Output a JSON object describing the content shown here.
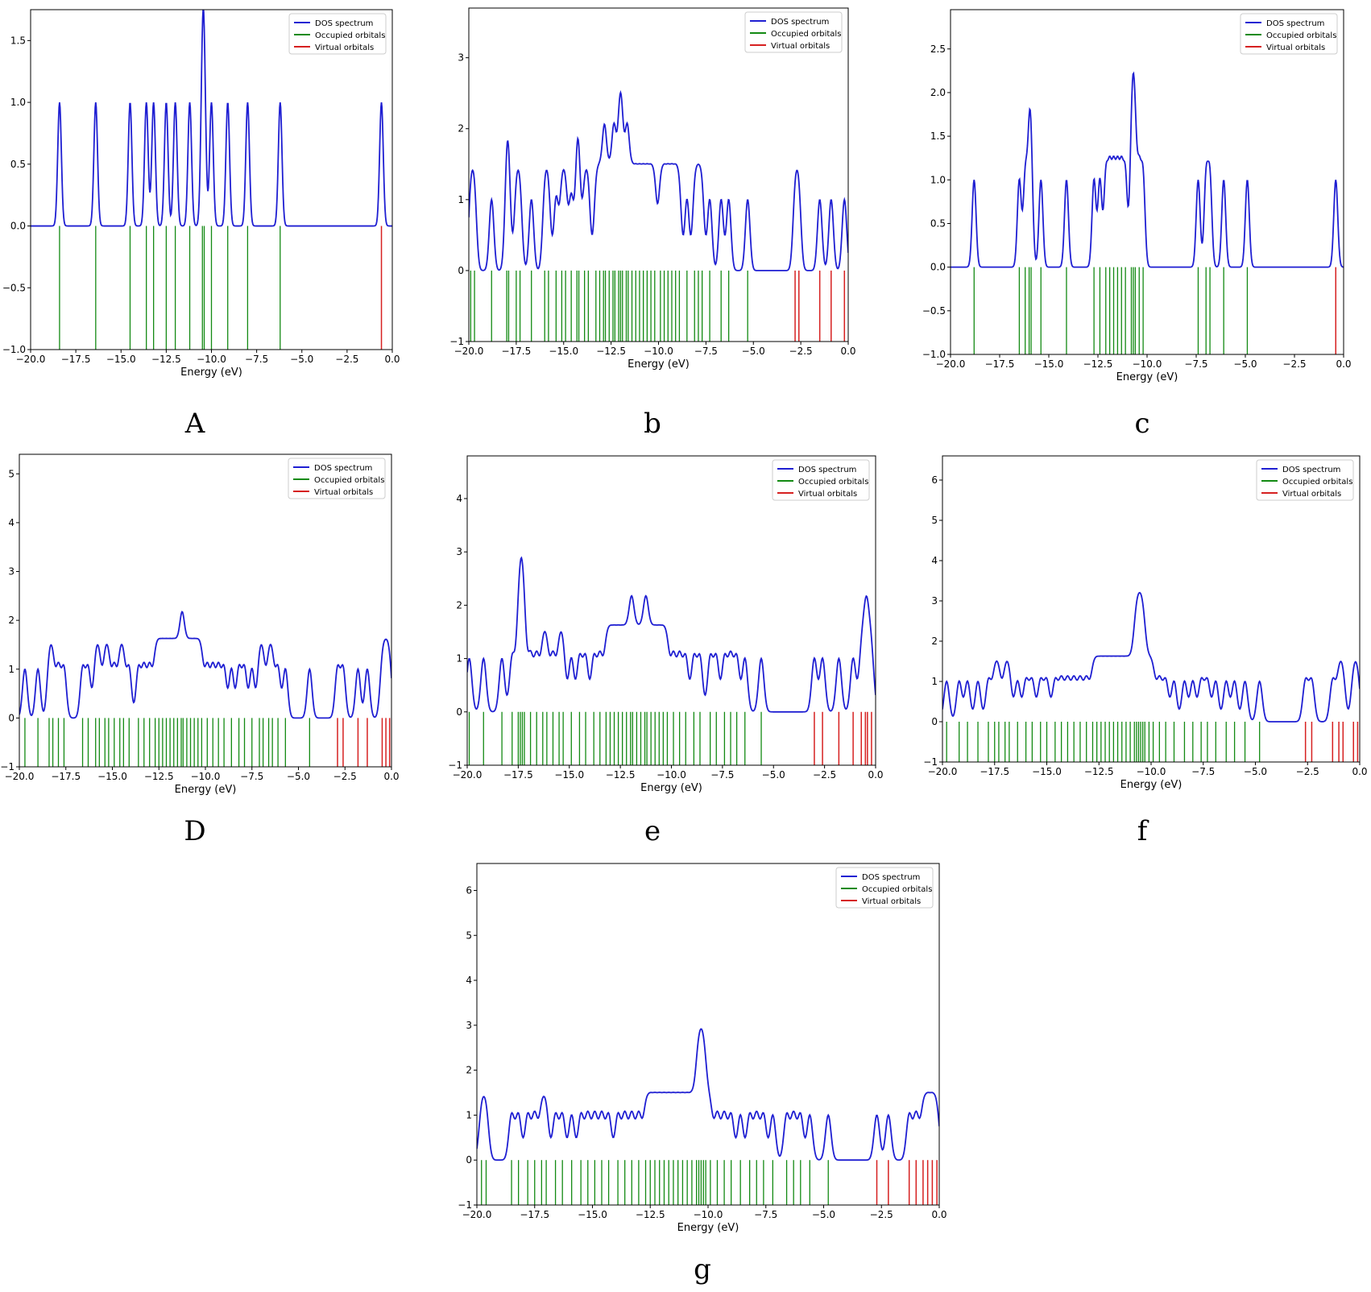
{
  "figure": {
    "legend_labels": [
      "DOS spectrum",
      "Occupied orbitals",
      "Virtual orbitals"
    ],
    "colors": {
      "dos": "#1f1fd2",
      "occupied": "#138a13",
      "virtual": "#d62020",
      "axis": "#000000"
    }
  },
  "chart_data": [
    {
      "panel": "A",
      "type": "line",
      "xlabel": "Energy (eV)",
      "ylabel": "",
      "xlim": [
        -20.0,
        0.0
      ],
      "ylim": [
        -1.0,
        1.75
      ],
      "xticks": [
        "−20.0",
        "−17.5",
        "−15.0",
        "−12.5",
        "−10.0",
        "−7.5",
        "−5.0",
        "−2.5",
        "0.0"
      ],
      "yticks": [
        "−1.0",
        "−0.5",
        "0.0",
        "0.5",
        "1.0",
        "1.5"
      ],
      "ytick_values": [
        -1.0,
        -0.5,
        0.0,
        0.5,
        1.0,
        1.5
      ],
      "sigma": 0.1,
      "occupied": [
        -18.4,
        -16.4,
        -14.5,
        -13.6,
        -13.2,
        -12.5,
        -12.0,
        -11.2,
        -10.5,
        -10.4,
        -10.0,
        -9.1,
        -8.0,
        -6.2
      ],
      "virtual": [
        -0.6
      ]
    },
    {
      "panel": "b",
      "type": "line",
      "xlabel": "Energy (eV)",
      "ylabel": "",
      "xlim": [
        -20.0,
        0.0
      ],
      "ylim": [
        -1.0,
        3.7
      ],
      "xticks": [
        "−20.0",
        "−17.5",
        "−15.0",
        "−12.5",
        "−10.0",
        "−7.5",
        "−5.0",
        "−2.5",
        "0.0"
      ],
      "yticks": [
        "−1",
        "0",
        "1",
        "2",
        "3"
      ],
      "ytick_values": [
        -1,
        0,
        1,
        2,
        3
      ],
      "sigma": 0.12,
      "occupied": [
        -19.9,
        -19.7,
        -18.8,
        -18.0,
        -17.9,
        -17.5,
        -17.3,
        -16.7,
        -16.0,
        -15.8,
        -15.4,
        -15.1,
        -14.9,
        -14.6,
        -14.3,
        -14.2,
        -13.9,
        -13.7,
        -13.3,
        -13.1,
        -12.9,
        -12.8,
        -12.6,
        -12.4,
        -12.3,
        -12.1,
        -12.0,
        -11.9,
        -11.7,
        -11.6,
        -11.4,
        -11.2,
        -11.0,
        -10.8,
        -10.6,
        -10.4,
        -10.2,
        -9.9,
        -9.7,
        -9.5,
        -9.3,
        -9.1,
        -8.9,
        -8.5,
        -8.1,
        -7.9,
        -7.7,
        -7.3,
        -6.7,
        -6.3,
        -5.3
      ],
      "virtual": [
        -2.8,
        -2.6,
        -1.5,
        -0.9,
        -0.2
      ]
    },
    {
      "panel": "c",
      "type": "line",
      "xlabel": "Energy (eV)",
      "ylabel": "",
      "xlim": [
        -20.0,
        0.0
      ],
      "ylim": [
        -1.0,
        2.95
      ],
      "xticks": [
        "−20.0",
        "−17.5",
        "−15.0",
        "−12.5",
        "−10.0",
        "−7.5",
        "−5.0",
        "−2.5",
        "0.0"
      ],
      "yticks": [
        "−1.0",
        "−0.5",
        "0.0",
        "0.5",
        "1.0",
        "1.5",
        "2.0",
        "2.5"
      ],
      "ytick_values": [
        -1.0,
        -0.5,
        0.0,
        0.5,
        1.0,
        1.5,
        2.0,
        2.5
      ],
      "sigma": 0.1,
      "occupied": [
        -18.8,
        -16.5,
        -16.2,
        -16.0,
        -15.9,
        -15.4,
        -14.1,
        -12.7,
        -12.4,
        -12.1,
        -11.9,
        -11.7,
        -11.5,
        -11.3,
        -11.1,
        -10.8,
        -10.7,
        -10.6,
        -10.4,
        -10.2,
        -7.4,
        -7.0,
        -6.8,
        -6.1,
        -4.9
      ],
      "virtual": [
        -0.4
      ]
    },
    {
      "panel": "D",
      "type": "line",
      "xlabel": "Energy (eV)",
      "ylabel": "",
      "xlim": [
        -20.0,
        0.0
      ],
      "ylim": [
        -1.0,
        5.4
      ],
      "xticks": [
        "−20.0",
        "−17.5",
        "−15.0",
        "−12.5",
        "−10.0",
        "−7.5",
        "−5.0",
        "−2.5",
        "0.0"
      ],
      "yticks": [
        "−1",
        "0",
        "1",
        "2",
        "3",
        "4",
        "5"
      ],
      "ytick_values": [
        -1,
        0,
        1,
        2,
        3,
        4,
        5
      ],
      "sigma": 0.13,
      "occupied": [
        -19.7,
        -19.0,
        -18.4,
        -18.2,
        -17.9,
        -17.6,
        -16.6,
        -16.3,
        -15.9,
        -15.7,
        -15.4,
        -15.2,
        -14.9,
        -14.6,
        -14.4,
        -14.1,
        -13.6,
        -13.3,
        -13.0,
        -12.7,
        -12.5,
        -12.3,
        -12.1,
        -11.9,
        -11.7,
        -11.5,
        -11.3,
        -11.2,
        -11.0,
        -10.8,
        -10.6,
        -10.4,
        -10.2,
        -9.9,
        -9.6,
        -9.3,
        -9.0,
        -8.6,
        -8.2,
        -7.9,
        -7.5,
        -7.1,
        -6.9,
        -6.6,
        -6.4,
        -6.1,
        -5.7,
        -4.4
      ],
      "virtual": [
        -2.9,
        -2.6,
        -1.8,
        -1.3,
        -0.5,
        -0.3,
        -0.1
      ]
    },
    {
      "panel": "e",
      "type": "line",
      "xlabel": "Energy (eV)",
      "ylabel": "",
      "xlim": [
        -20.0,
        0.0
      ],
      "ylim": [
        -1.0,
        4.8
      ],
      "xticks": [
        "−20.0",
        "−17.5",
        "−15.0",
        "−12.5",
        "−10.0",
        "−7.5",
        "−5.0",
        "−2.5",
        "0.0"
      ],
      "yticks": [
        "−1",
        "0",
        "1",
        "2",
        "3",
        "4"
      ],
      "ytick_values": [
        -1,
        0,
        1,
        2,
        3,
        4
      ],
      "sigma": 0.13,
      "occupied": [
        -19.9,
        -19.2,
        -18.3,
        -17.8,
        -17.5,
        -17.4,
        -17.3,
        -17.2,
        -16.9,
        -16.6,
        -16.3,
        -16.1,
        -15.8,
        -15.5,
        -15.3,
        -14.9,
        -14.5,
        -14.2,
        -13.8,
        -13.5,
        -13.2,
        -13.0,
        -12.8,
        -12.6,
        -12.4,
        -12.2,
        -12.0,
        -11.9,
        -11.7,
        -11.5,
        -11.3,
        -11.2,
        -11.0,
        -10.8,
        -10.6,
        -10.4,
        -10.2,
        -9.9,
        -9.6,
        -9.3,
        -8.9,
        -8.6,
        -8.1,
        -7.8,
        -7.4,
        -7.1,
        -6.8,
        -6.4,
        -5.6
      ],
      "virtual": [
        -3.0,
        -2.6,
        -1.8,
        -1.1,
        -0.7,
        -0.5,
        -0.4,
        -0.2
      ]
    },
    {
      "panel": "f",
      "type": "line",
      "xlabel": "Energy (eV)",
      "ylabel": "",
      "xlim": [
        -20.0,
        0.0
      ],
      "ylim": [
        -1.0,
        6.6
      ],
      "xticks": [
        "−20.0",
        "−17.5",
        "−15.0",
        "−12.5",
        "−10.0",
        "−7.5",
        "−5.0",
        "−2.5",
        "0.0"
      ],
      "yticks": [
        "−1",
        "0",
        "1",
        "2",
        "3",
        "4",
        "5",
        "6"
      ],
      "ytick_values": [
        -1,
        0,
        1,
        2,
        3,
        4,
        5,
        6
      ],
      "sigma": 0.13,
      "occupied": [
        -19.8,
        -19.2,
        -18.8,
        -18.3,
        -17.8,
        -17.5,
        -17.3,
        -17.0,
        -16.8,
        -16.4,
        -16.0,
        -15.7,
        -15.3,
        -15.0,
        -14.6,
        -14.3,
        -14.0,
        -13.7,
        -13.4,
        -13.1,
        -12.8,
        -12.6,
        -12.4,
        -12.2,
        -12.0,
        -11.8,
        -11.6,
        -11.4,
        -11.2,
        -11.0,
        -10.8,
        -10.7,
        -10.6,
        -10.5,
        -10.4,
        -10.3,
        -10.1,
        -9.9,
        -9.6,
        -9.3,
        -8.9,
        -8.4,
        -8.0,
        -7.6,
        -7.3,
        -6.9,
        -6.4,
        -6.0,
        -5.5,
        -4.8
      ],
      "virtual": [
        -2.6,
        -2.3,
        -1.3,
        -1.0,
        -0.8,
        -0.3,
        -0.1
      ]
    },
    {
      "panel": "g",
      "type": "line",
      "xlabel": "Energy (eV)",
      "ylabel": "",
      "xlim": [
        -20.0,
        0.0
      ],
      "ylim": [
        -1.0,
        6.6
      ],
      "xticks": [
        "−20.0",
        "−17.5",
        "−15.0",
        "−12.5",
        "−10.0",
        "−7.5",
        "−5.0",
        "−2.5",
        "0.0"
      ],
      "yticks": [
        "−1",
        "0",
        "1",
        "2",
        "3",
        "4",
        "5",
        "6"
      ],
      "ytick_values": [
        -1,
        0,
        1,
        2,
        3,
        4,
        5,
        6
      ],
      "sigma": 0.12,
      "occupied": [
        -19.8,
        -19.6,
        -18.5,
        -18.2,
        -17.8,
        -17.5,
        -17.2,
        -17.0,
        -16.6,
        -16.3,
        -15.9,
        -15.5,
        -15.2,
        -14.9,
        -14.6,
        -14.3,
        -13.9,
        -13.6,
        -13.3,
        -13.0,
        -12.7,
        -12.5,
        -12.3,
        -12.1,
        -11.9,
        -11.7,
        -11.5,
        -11.3,
        -11.1,
        -10.9,
        -10.7,
        -10.5,
        -10.4,
        -10.3,
        -10.2,
        -10.1,
        -9.9,
        -9.6,
        -9.3,
        -9.0,
        -8.6,
        -8.2,
        -7.9,
        -7.6,
        -7.2,
        -6.6,
        -6.3,
        -6.0,
        -5.6,
        -4.8
      ],
      "virtual": [
        -2.7,
        -2.2,
        -1.3,
        -1.0,
        -0.7,
        -0.5,
        -0.3,
        -0.1
      ]
    }
  ]
}
